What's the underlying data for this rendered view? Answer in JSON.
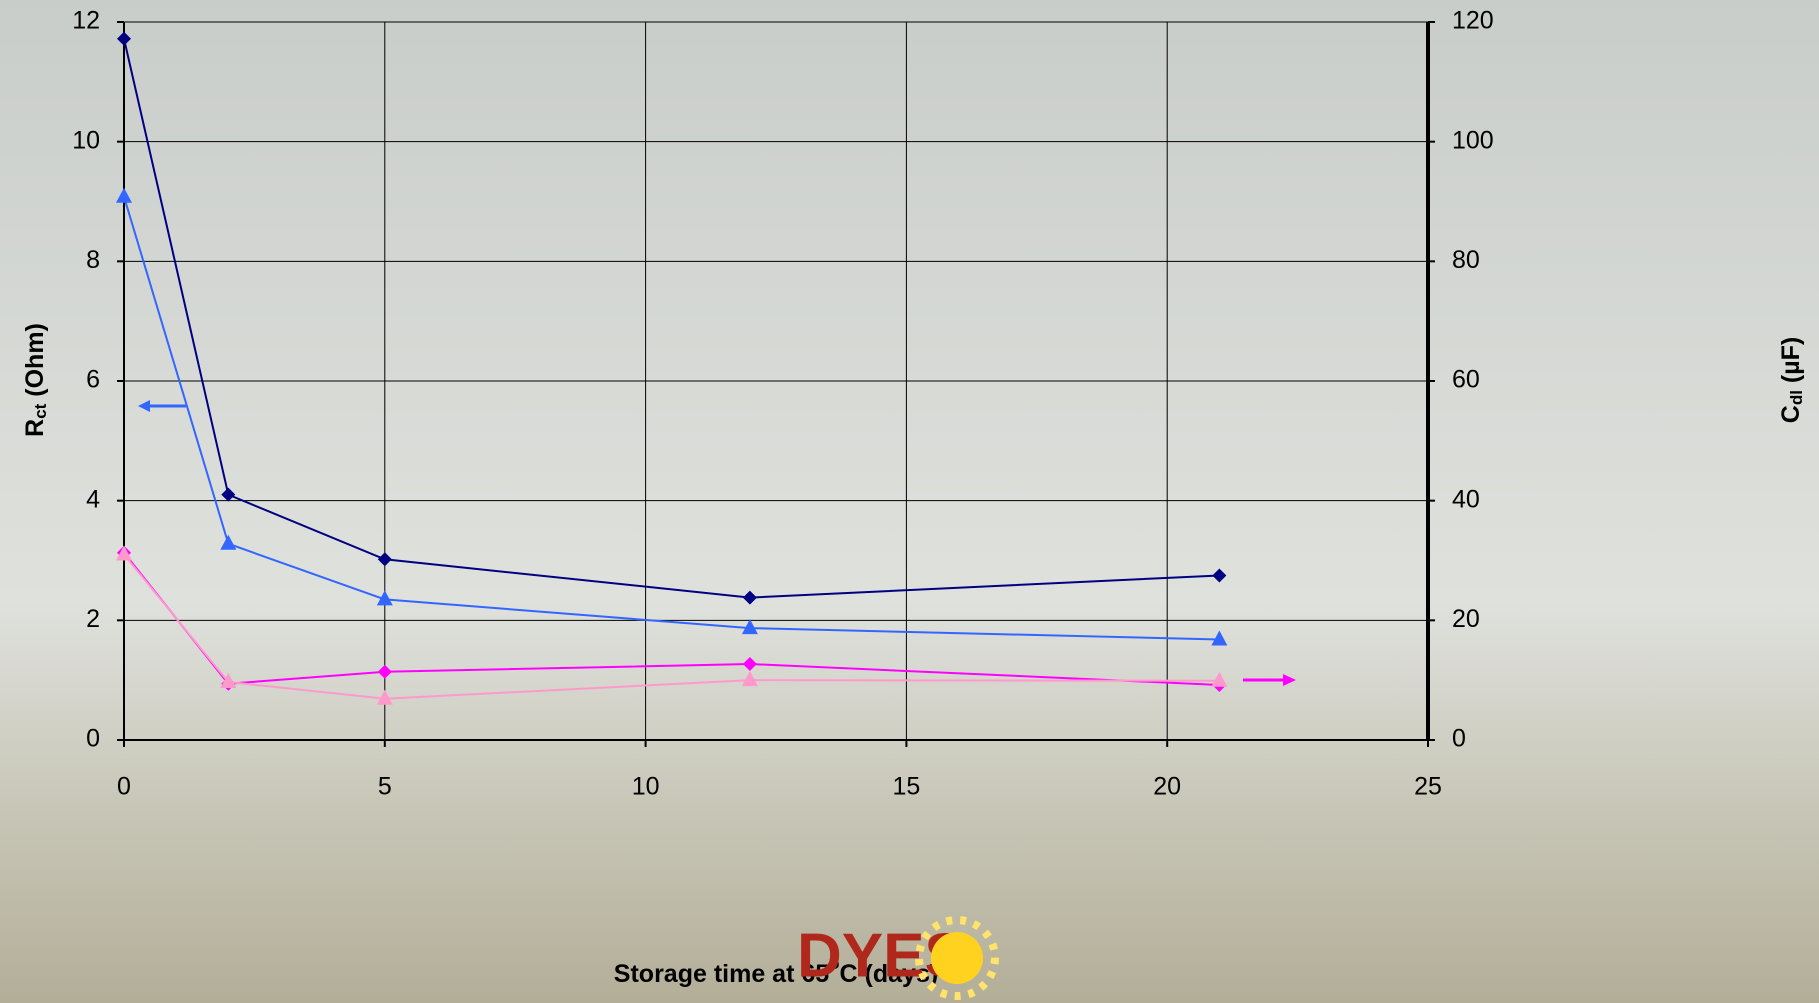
{
  "chart_data": {
    "type": "line",
    "x_label": {
      "parts": [
        "Storage time at 65",
        "o",
        "C (days)"
      ]
    },
    "y_label": {
      "parts": [
        "R",
        "ct",
        " (Ohm)"
      ]
    },
    "y2_label": {
      "parts": [
        "C",
        "dl",
        " (µF)"
      ]
    },
    "x": [
      0,
      2,
      5,
      12,
      21
    ],
    "series": [
      {
        "color": "#000080",
        "marker": "diamond",
        "values": [
          11.72,
          4.1,
          3.02,
          2.38,
          2.75
        ]
      },
      {
        "color": "#3366ff",
        "marker": "triangle",
        "values": [
          9.08,
          3.28,
          2.35,
          1.87,
          1.68
        ]
      },
      {
        "color": "#ff00ff",
        "marker": "diamond",
        "axis": "y2",
        "values": [
          31.3,
          9.4,
          11.4,
          12.7,
          9.2
        ]
      },
      {
        "color": "#ff99cc",
        "marker": "triangle",
        "axis": "y2",
        "values": [
          31,
          9.7,
          6.9,
          10,
          9.9
        ]
      }
    ],
    "xlim": [
      0,
      25
    ],
    "xticks": [
      0,
      5,
      10,
      15,
      20,
      25
    ],
    "ylim": [
      0,
      12
    ],
    "yticks": [
      0,
      2,
      4,
      6,
      8,
      10,
      12
    ],
    "y2lim": [
      0,
      120
    ],
    "y2ticks": [
      0,
      20,
      40,
      60,
      80,
      100,
      120
    ],
    "grid": true
  },
  "logo": "DYES"
}
